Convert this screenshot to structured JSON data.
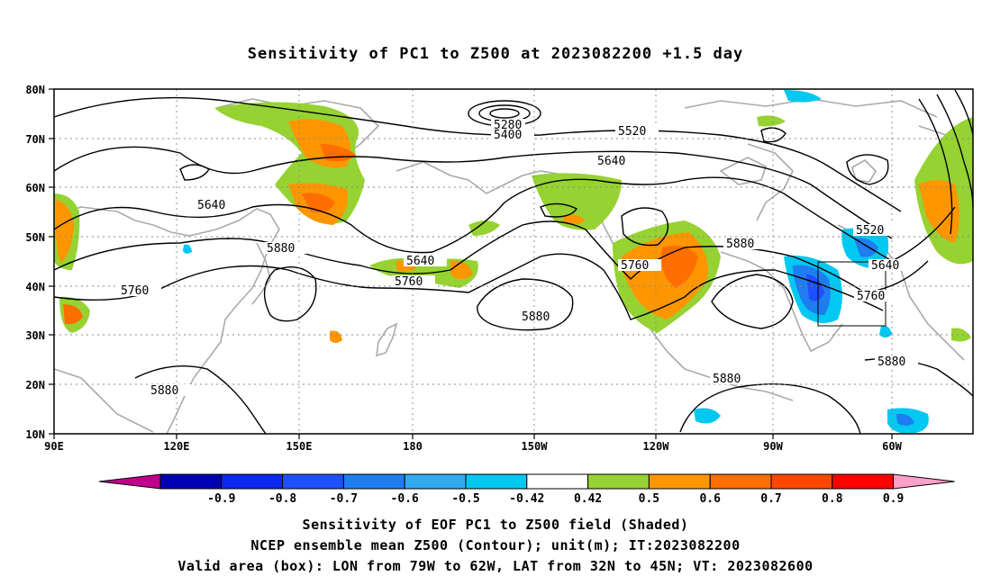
{
  "title": "Sensitivity of PC1 to Z500 at 2023082200 +1.5 day",
  "lat_labels": [
    "80N",
    "70N",
    "60N",
    "50N",
    "40N",
    "30N",
    "20N",
    "10N"
  ],
  "lon_labels": [
    "90E",
    "120E",
    "150E",
    "180",
    "150W",
    "120W",
    "90W",
    "60W"
  ],
  "contour_labels": [
    "5280",
    "5400",
    "5520",
    "5640",
    "5640",
    "5760",
    "5880",
    "5640",
    "5760",
    "5880",
    "5760",
    "5880",
    "5880",
    "5520",
    "5640",
    "5760",
    "5880",
    "5880"
  ],
  "colorbar": {
    "labels": [
      "-0.9",
      "-0.8",
      "-0.7",
      "-0.6",
      "-0.5",
      "-0.42",
      "0.42",
      "0.5",
      "0.6",
      "0.7",
      "0.8",
      "0.9"
    ],
    "colors": [
      "#c0008c",
      "#0000b4",
      "#0a28f0",
      "#1e50ff",
      "#1e7df0",
      "#32aaf0",
      "#00c8f0",
      "#ffffff",
      "#96d232",
      "#ff9600",
      "#ff6e00",
      "#ff4600",
      "#ff0000",
      "#ffa0c8"
    ]
  },
  "captions": [
    "Sensitivity of EOF PC1 to Z500 field (Shaded)",
    "NCEP ensemble mean Z500 (Contour); unit(m); IT:2023082200",
    "Valid area (box): LON from 79W to 62W, LAT from 32N to 45N; VT: 2023082600"
  ]
}
